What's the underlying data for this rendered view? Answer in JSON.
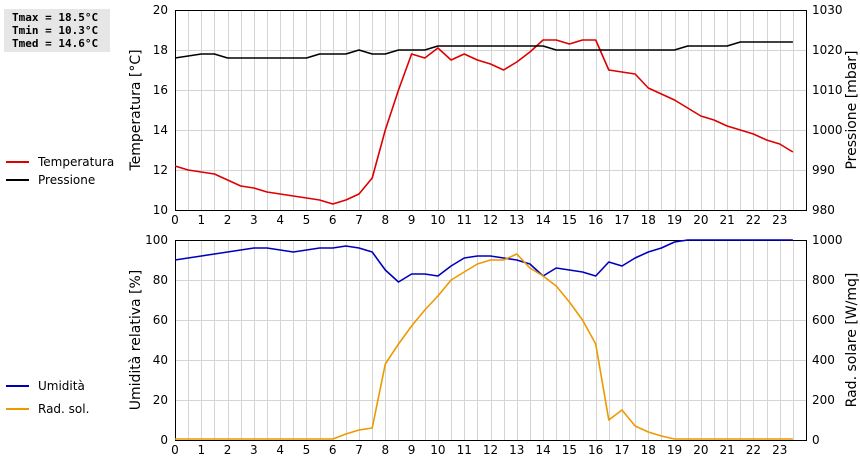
{
  "stats": {
    "tmax": "Tmax = 18.5°C",
    "tmin": "Tmin = 10.3°C",
    "tmed": "Tmed = 14.6°C"
  },
  "chart_data": [
    {
      "type": "line",
      "x_ticks": [
        "0",
        "1",
        "2",
        "3",
        "4",
        "5",
        "6",
        "7",
        "8",
        "9",
        "10",
        "11",
        "12",
        "13",
        "14",
        "15",
        "16",
        "17",
        "18",
        "19",
        "20",
        "21",
        "22",
        "23"
      ],
      "xlim": [
        0,
        24
      ],
      "ylabel_left": "Temperatura [°C]",
      "ylabel_right": "Pressione [mbar]",
      "ylim_left": [
        10,
        20
      ],
      "ylim_right": [
        980,
        1030
      ],
      "yticks_left": [
        "10",
        "12",
        "14",
        "16",
        "18",
        "20"
      ],
      "yticks_right": [
        "980",
        "990",
        "1000",
        "1010",
        "1020",
        "1030"
      ],
      "grid": true,
      "legend_position": "left",
      "series": [
        {
          "name": "Temperatura",
          "axis": "left",
          "color": "#dd0000",
          "points": [
            [
              0,
              12.2
            ],
            [
              0.5,
              12.0
            ],
            [
              1,
              11.9
            ],
            [
              1.5,
              11.8
            ],
            [
              2,
              11.5
            ],
            [
              2.5,
              11.2
            ],
            [
              3,
              11.1
            ],
            [
              3.5,
              10.9
            ],
            [
              4,
              10.8
            ],
            [
              4.5,
              10.7
            ],
            [
              5,
              10.6
            ],
            [
              5.5,
              10.5
            ],
            [
              6,
              10.3
            ],
            [
              6.5,
              10.5
            ],
            [
              7,
              10.8
            ],
            [
              7.5,
              11.6
            ],
            [
              8,
              14.0
            ],
            [
              8.5,
              16.0
            ],
            [
              9,
              17.8
            ],
            [
              9.5,
              17.6
            ],
            [
              10,
              18.1
            ],
            [
              10.5,
              17.5
            ],
            [
              11,
              17.8
            ],
            [
              11.5,
              17.5
            ],
            [
              12,
              17.3
            ],
            [
              12.5,
              17.0
            ],
            [
              13,
              17.4
            ],
            [
              13.5,
              17.9
            ],
            [
              14,
              18.5
            ],
            [
              14.5,
              18.5
            ],
            [
              15,
              18.3
            ],
            [
              15.5,
              18.5
            ],
            [
              16,
              18.5
            ],
            [
              16.5,
              17.0
            ],
            [
              17,
              16.9
            ],
            [
              17.5,
              16.8
            ],
            [
              18,
              16.1
            ],
            [
              18.5,
              15.8
            ],
            [
              19,
              15.5
            ],
            [
              19.5,
              15.1
            ],
            [
              20,
              14.7
            ],
            [
              20.5,
              14.5
            ],
            [
              21,
              14.2
            ],
            [
              21.5,
              14.0
            ],
            [
              22,
              13.8
            ],
            [
              22.5,
              13.5
            ],
            [
              23,
              13.3
            ],
            [
              23.5,
              12.9
            ]
          ]
        },
        {
          "name": "Pressione",
          "axis": "right",
          "color": "#000000",
          "points": [
            [
              0,
              1018
            ],
            [
              1,
              1019
            ],
            [
              1.5,
              1019
            ],
            [
              2,
              1018
            ],
            [
              5,
              1018
            ],
            [
              5.5,
              1019
            ],
            [
              6.5,
              1019
            ],
            [
              7,
              1020
            ],
            [
              7.5,
              1019
            ],
            [
              8,
              1019
            ],
            [
              8.5,
              1020
            ],
            [
              9.5,
              1020
            ],
            [
              10,
              1021
            ],
            [
              14,
              1021
            ],
            [
              14.5,
              1020
            ],
            [
              17,
              1020
            ],
            [
              19,
              1020
            ],
            [
              19.5,
              1021
            ],
            [
              21,
              1021
            ],
            [
              21.5,
              1022
            ],
            [
              23.5,
              1022
            ]
          ]
        }
      ]
    },
    {
      "type": "line",
      "x_ticks": [
        "0",
        "1",
        "2",
        "3",
        "4",
        "5",
        "6",
        "7",
        "8",
        "9",
        "10",
        "11",
        "12",
        "13",
        "14",
        "15",
        "16",
        "17",
        "18",
        "19",
        "20",
        "21",
        "22",
        "23"
      ],
      "xlim": [
        0,
        24
      ],
      "ylabel_left": "Umidità relativa [%]",
      "ylabel_right": "Rad. solare [W/mq]",
      "ylim_left": [
        0,
        100
      ],
      "ylim_right": [
        0,
        1000
      ],
      "yticks_left": [
        "0",
        "20",
        "40",
        "60",
        "80",
        "100"
      ],
      "yticks_right": [
        "0",
        "200",
        "400",
        "600",
        "800",
        "1000"
      ],
      "grid": true,
      "legend_position": "left",
      "series": [
        {
          "name": "Umidità",
          "axis": "left",
          "color": "#0000bb",
          "points": [
            [
              0,
              90
            ],
            [
              0.5,
              91
            ],
            [
              1,
              92
            ],
            [
              1.5,
              93
            ],
            [
              2,
              94
            ],
            [
              2.5,
              95
            ],
            [
              3,
              96
            ],
            [
              3.5,
              96
            ],
            [
              4,
              95
            ],
            [
              4.5,
              94
            ],
            [
              5,
              95
            ],
            [
              5.5,
              96
            ],
            [
              6,
              96
            ],
            [
              6.5,
              97
            ],
            [
              7,
              96
            ],
            [
              7.5,
              94
            ],
            [
              8,
              85
            ],
            [
              8.5,
              79
            ],
            [
              9,
              83
            ],
            [
              9.5,
              83
            ],
            [
              10,
              82
            ],
            [
              10.5,
              87
            ],
            [
              11,
              91
            ],
            [
              11.5,
              92
            ],
            [
              12,
              92
            ],
            [
              12.5,
              91
            ],
            [
              13,
              90
            ],
            [
              13.5,
              88
            ],
            [
              14,
              82
            ],
            [
              14.5,
              86
            ],
            [
              15,
              85
            ],
            [
              15.5,
              84
            ],
            [
              16,
              82
            ],
            [
              16.5,
              89
            ],
            [
              17,
              87
            ],
            [
              17.5,
              91
            ],
            [
              18,
              94
            ],
            [
              18.5,
              96
            ],
            [
              19,
              99
            ],
            [
              19.5,
              100
            ],
            [
              20,
              100
            ],
            [
              20.5,
              100
            ],
            [
              21,
              100
            ],
            [
              23.5,
              100
            ]
          ]
        },
        {
          "name": "Rad. sol.",
          "axis": "right",
          "color": "#ee9900",
          "points": [
            [
              0,
              5
            ],
            [
              6,
              5
            ],
            [
              6.5,
              30
            ],
            [
              7,
              50
            ],
            [
              7.5,
              60
            ],
            [
              8,
              380
            ],
            [
              8.5,
              480
            ],
            [
              9,
              570
            ],
            [
              9.5,
              650
            ],
            [
              10,
              720
            ],
            [
              10.5,
              800
            ],
            [
              11,
              840
            ],
            [
              11.5,
              880
            ],
            [
              12,
              900
            ],
            [
              12.5,
              900
            ],
            [
              13,
              930
            ],
            [
              13.5,
              860
            ],
            [
              14,
              820
            ],
            [
              14.5,
              770
            ],
            [
              15,
              690
            ],
            [
              15.5,
              600
            ],
            [
              16,
              480
            ],
            [
              16.5,
              100
            ],
            [
              17,
              150
            ],
            [
              17.5,
              70
            ],
            [
              18,
              40
            ],
            [
              18.5,
              20
            ],
            [
              19,
              5
            ],
            [
              23.5,
              5
            ]
          ]
        }
      ]
    }
  ]
}
